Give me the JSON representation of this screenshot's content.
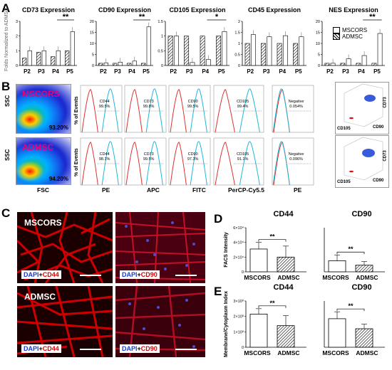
{
  "panel_labels": {
    "A": "A",
    "B": "B",
    "C": "C",
    "D": "D",
    "E": "E"
  },
  "panelA": {
    "ylabel": "Folds Normalized to ADMSC",
    "legend": [
      {
        "label": "MSCORS",
        "pattern": "open"
      },
      {
        "label": "ADMSC",
        "pattern": "hatched"
      }
    ]
  },
  "panelB": {
    "rows": [
      {
        "name": "MSCORS",
        "scatter_pct": "93.20%",
        "color": "#e6007e",
        "hist": [
          {
            "m": "CD44",
            "p": "99.5%"
          },
          {
            "m": "CD73",
            "p": "99.8%"
          },
          {
            "m": "CD90",
            "p": "99.5%"
          },
          {
            "m": "CD105",
            "p": "99.4%"
          },
          {
            "m": "Negative",
            "p": "0.054%"
          }
        ]
      },
      {
        "name": "ADMSC",
        "scatter_pct": "94.20%",
        "color": "#e6007e",
        "hist": [
          {
            "m": "CD44",
            "p": "98.1%"
          },
          {
            "m": "CD73",
            "p": "99.5%"
          },
          {
            "m": "CD90",
            "p": "97.3%"
          },
          {
            "m": "CD105",
            "p": "91.1%"
          },
          {
            "m": "Negative",
            "p": "0.096%"
          }
        ]
      }
    ],
    "ssc": "SSC",
    "fsc": "FSC",
    "pct_events": "% of Events",
    "channels": [
      "PE",
      "APC",
      "FITC",
      "PerCP-Cy5.5",
      "PE"
    ],
    "axes3d": {
      "a": "CD105",
      "b": "CD90",
      "c": "CD73"
    }
  },
  "panelC": {
    "row_labels": [
      "MSCORS",
      "ADMSC"
    ],
    "stains": [
      {
        "a": "DAPI",
        "b": "+",
        "c": "CD44"
      },
      {
        "a": "DAPI",
        "b": "+",
        "c": "CD90"
      }
    ]
  },
  "chart_data": [
    {
      "type": "bar",
      "title": "CD73 Expression",
      "categories": [
        "P2",
        "P3",
        "P4",
        "P5"
      ],
      "series": [
        {
          "name": "MSCORS",
          "values": [
            1.0,
            1.0,
            1.0,
            2.3
          ]
        },
        {
          "name": "ADMSC",
          "values": [
            0.5,
            0.9,
            0.6,
            1.0
          ]
        }
      ],
      "ylabel": "Folds Normalized to ADMSC",
      "ylim": [
        0,
        3
      ],
      "yticks": [
        0,
        1,
        2,
        3
      ],
      "significance": [
        {
          "category": "P5",
          "label": "**"
        }
      ]
    },
    {
      "type": "bar",
      "title": "CD90 Expression",
      "categories": [
        "P2",
        "P3",
        "P4",
        "P5"
      ],
      "series": [
        {
          "name": "MSCORS",
          "values": [
            1.2,
            1.5,
            2.0,
            17.5
          ]
        },
        {
          "name": "ADMSC",
          "values": [
            1.0,
            1.0,
            1.0,
            1.0
          ]
        }
      ],
      "ylim": [
        0,
        20
      ],
      "yticks": [
        0,
        5,
        10,
        15,
        20
      ],
      "significance": [
        {
          "category": "P5",
          "label": "**"
        }
      ]
    },
    {
      "type": "bar",
      "title": "CD105 Expression",
      "categories": [
        "P2",
        "P3",
        "P4",
        "P5"
      ],
      "series": [
        {
          "name": "MSCORS",
          "values": [
            1.0,
            0.1,
            0.2,
            1.15
          ]
        },
        {
          "name": "ADMSC",
          "values": [
            1.0,
            1.0,
            1.0,
            1.0
          ]
        }
      ],
      "ylim": [
        0,
        1.5
      ],
      "yticks": [
        0,
        0.5,
        1,
        1.5
      ],
      "significance": [
        {
          "category": "P5",
          "label": "*"
        }
      ]
    },
    {
      "type": "bar",
      "title": "CD45 Expression",
      "categories": [
        "P2",
        "P3",
        "P4",
        "P5"
      ],
      "series": [
        {
          "name": "MSCORS",
          "values": [
            1.4,
            1.3,
            1.35,
            1.3
          ]
        },
        {
          "name": "ADMSC",
          "values": [
            1.0,
            1.0,
            1.0,
            1.0
          ]
        }
      ],
      "ylim": [
        0,
        2
      ],
      "yticks": [
        0,
        0.5,
        1,
        1.5,
        2
      ]
    },
    {
      "type": "bar",
      "title": "NES Expression",
      "categories": [
        "P2",
        "P3",
        "P4",
        "P5"
      ],
      "series": [
        {
          "name": "MSCORS",
          "values": [
            1.0,
            3.0,
            4.5,
            14.5
          ]
        },
        {
          "name": "ADMSC",
          "values": [
            1.0,
            1.0,
            1.0,
            1.0
          ]
        }
      ],
      "ylim": [
        0,
        20
      ],
      "yticks": [
        0,
        5,
        10,
        15,
        20
      ],
      "significance": [
        {
          "category": "P5",
          "label": "**"
        }
      ]
    },
    {
      "type": "bar",
      "title": "CD44",
      "categories": [
        "MSCORS",
        "ADMSC"
      ],
      "values": [
        31000,
        20000
      ],
      "errors": [
        9000,
        15000
      ],
      "ylabel": "FACS Intensity",
      "ylim": [
        0,
        60000
      ],
      "yticks_labels": [
        "0",
        "2×10⁴",
        "4×10⁴",
        "6×10⁴"
      ],
      "significance": "**"
    },
    {
      "type": "bar",
      "title": "CD90",
      "categories": [
        "MSCORS",
        "ADMSC"
      ],
      "values": [
        15000,
        9000
      ],
      "errors": [
        8000,
        5000
      ],
      "ylim": [
        0,
        60000
      ],
      "significance": "**"
    },
    {
      "type": "bar",
      "title": "CD44",
      "categories": [
        "MSCORS",
        "ADMSC"
      ],
      "values": [
        2.15,
        1.4
      ],
      "errors": [
        0.35,
        0.65
      ],
      "ylabel": "Membrane/Cytoplasm Index",
      "ylim": [
        0,
        3
      ],
      "yticks_labels": [
        "0",
        "1×10⁰",
        "2×10⁰",
        "3×10⁰"
      ],
      "significance": "**"
    },
    {
      "type": "bar",
      "title": "CD90",
      "categories": [
        "MSCORS",
        "ADMSC"
      ],
      "values": [
        1.85,
        1.2
      ],
      "errors": [
        0.45,
        0.3
      ],
      "ylim": [
        0,
        3
      ],
      "significance": "**"
    }
  ]
}
